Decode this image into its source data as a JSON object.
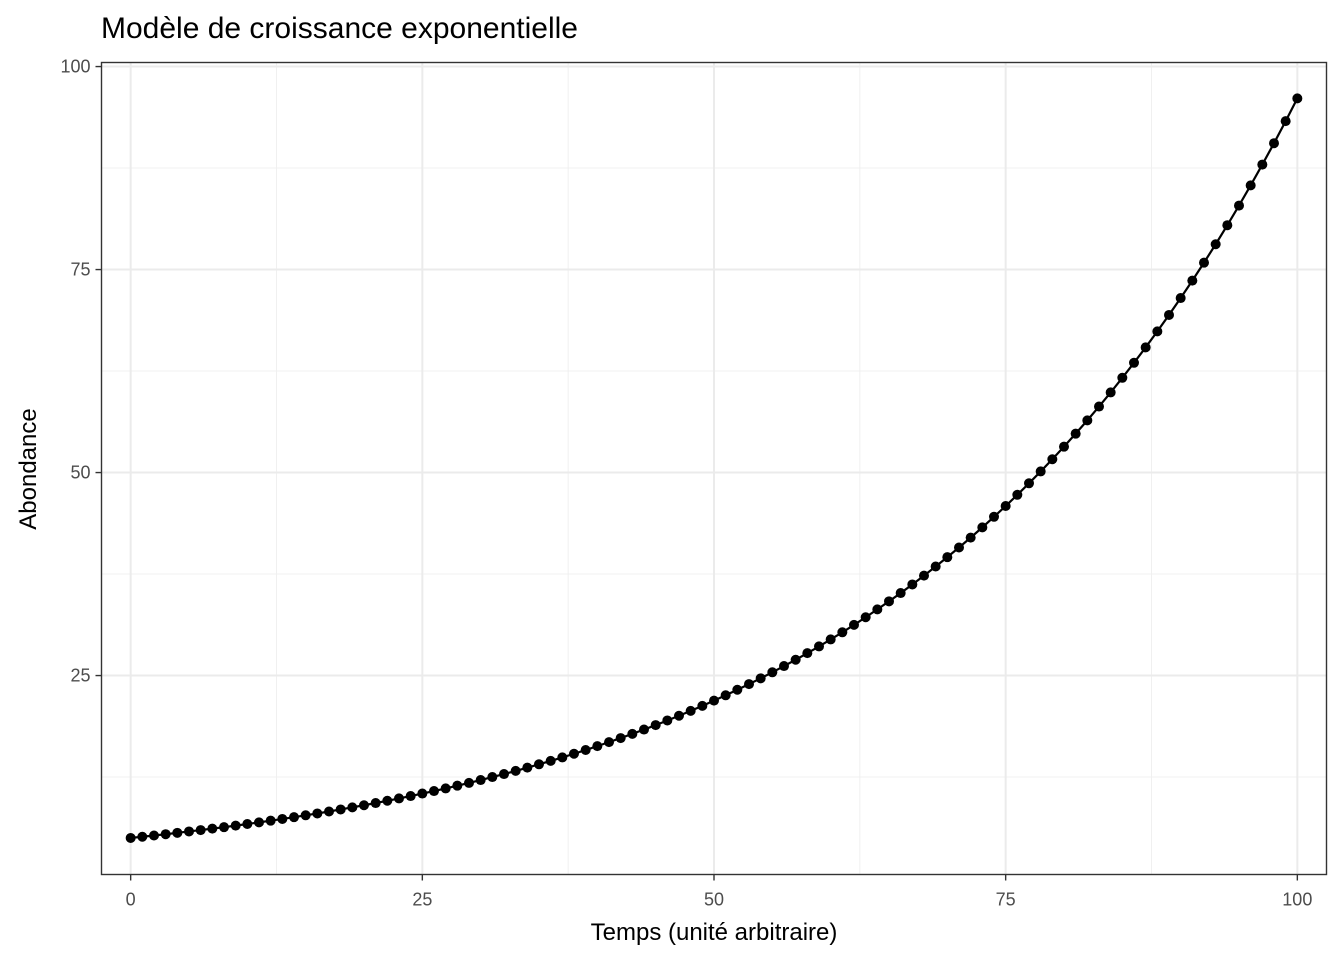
{
  "chart_data": {
    "type": "line",
    "title": "Modèle de croissance exponentielle",
    "xlabel": "Temps (unité arbitraire)",
    "ylabel": "Abondance",
    "xlim": [
      -2.5,
      102.5
    ],
    "ylim": [
      0.5,
      100.5
    ],
    "x_ticks": [
      0,
      25,
      50,
      75,
      100
    ],
    "y_ticks": [
      25,
      50,
      75,
      100
    ],
    "x_tick_labels": [
      "0",
      "25",
      "50",
      "75",
      "100"
    ],
    "y_tick_labels": [
      "25",
      "50",
      "75",
      "100"
    ],
    "grid": true,
    "markers": true,
    "line_color": "#000000",
    "series": [
      {
        "x": [
          0,
          1,
          2,
          3,
          4,
          5,
          6,
          7,
          8,
          9,
          10,
          11,
          12,
          13,
          14,
          15,
          16,
          17,
          18,
          19,
          20,
          21,
          22,
          23,
          24,
          25,
          26,
          27,
          28,
          29,
          30,
          31,
          32,
          33,
          34,
          35,
          36,
          37,
          38,
          39,
          40,
          41,
          42,
          43,
          44,
          45,
          46,
          47,
          48,
          49,
          50,
          51,
          52,
          53,
          54,
          55,
          56,
          57,
          58,
          59,
          60,
          61,
          62,
          63,
          64,
          65,
          66,
          67,
          68,
          69,
          70,
          71,
          72,
          73,
          74,
          75,
          76,
          77,
          78,
          79,
          80,
          81,
          82,
          83,
          84,
          85,
          86,
          87,
          88,
          89,
          90,
          91,
          92,
          93,
          94,
          95,
          96,
          97,
          98,
          99,
          100
        ],
        "y": [
          5.0,
          5.15,
          5.3,
          5.46,
          5.63,
          5.8,
          5.97,
          6.15,
          6.33,
          6.52,
          6.72,
          6.92,
          7.13,
          7.34,
          7.56,
          7.79,
          8.02,
          8.26,
          8.51,
          8.77,
          9.03,
          9.3,
          9.58,
          9.87,
          10.16,
          10.47,
          10.78,
          11.1,
          11.44,
          11.78,
          12.13,
          12.5,
          12.87,
          13.26,
          13.66,
          14.07,
          14.49,
          14.92,
          15.37,
          15.83,
          16.31,
          16.8,
          17.3,
          17.82,
          18.35,
          18.9,
          19.47,
          20.05,
          20.65,
          21.27,
          21.91,
          22.57,
          23.25,
          23.95,
          24.66,
          25.4,
          26.17,
          26.95,
          27.76,
          28.59,
          29.45,
          30.33,
          31.24,
          32.18,
          33.15,
          34.14,
          35.16,
          36.22,
          37.31,
          38.43,
          39.58,
          40.77,
          41.99,
          43.25,
          44.55,
          45.88,
          47.26,
          48.68,
          50.14,
          51.64,
          53.19,
          54.79,
          56.43,
          58.13,
          59.87,
          61.67,
          63.52,
          65.42,
          67.39,
          69.41,
          71.49,
          73.64,
          75.85,
          78.12,
          80.46,
          82.88,
          85.37,
          87.93,
          90.56,
          93.28,
          96.08
        ]
      }
    ]
  }
}
